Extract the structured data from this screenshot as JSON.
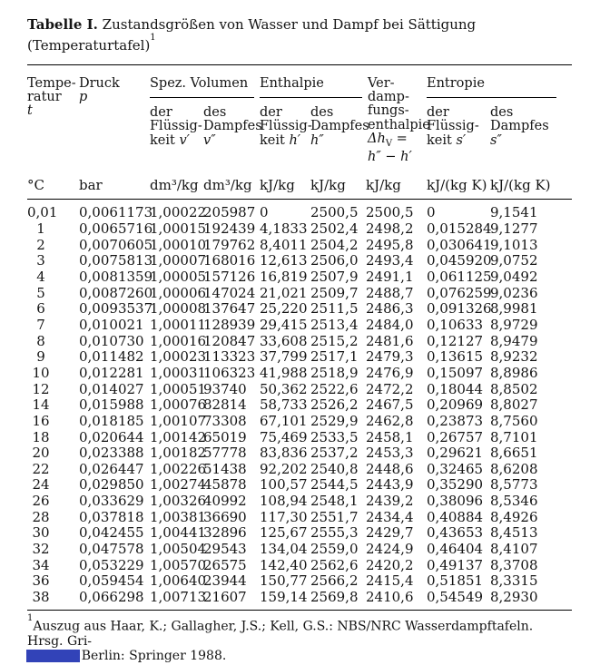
{
  "title": {
    "bold": "Tabelle I.",
    "rest": " Zustandsgrößen von Wasser und Dampf bei Sättigung (Temperaturtafel)",
    "footnote_ref": "1"
  },
  "header": {
    "temperatur": {
      "pre": "Tempe-\nratur\n",
      "sym": "t"
    },
    "druck": {
      "pre": "Druck\n",
      "sym": "p"
    },
    "groups": {
      "spez_volumen": "Spez. Volumen",
      "enthalpie": "Enthalpie",
      "entropie": "Entropie"
    },
    "v_fluessigkeit": {
      "pre": "der\nFlüssig-\nkeit ",
      "sym": "v′"
    },
    "v_dampf": {
      "pre": "des\nDampfes\n",
      "sym": "v″"
    },
    "h_fluessigkeit": {
      "pre": "der\nFlüssig-\nkeit ",
      "sym": "h′"
    },
    "h_dampf": {
      "pre": "des\nDampfes\n",
      "sym": "h″"
    },
    "verdampfung": {
      "pre": "Ver-\ndamp-\nfungs-\nenthalpie\n",
      "f1": "Δh",
      "f1sub": "V",
      "f1eq": " =",
      "f2": "h″ − h′"
    },
    "s_fluessigkeit": {
      "pre": "der\nFlüssig-\nkeit ",
      "sym": "s′"
    },
    "s_dampf": {
      "pre": "des\nDampfes\n",
      "sym": "s″"
    }
  },
  "units": [
    "°C",
    "bar",
    "dm³/kg",
    "dm³/kg",
    "kJ/kg",
    "kJ/kg",
    "kJ/kg",
    "kJ/(kg K)",
    "kJ/(kg K)"
  ],
  "table": {
    "columns": [
      "t",
      "p",
      "v1",
      "v2",
      "h1",
      "h2",
      "dhv",
      "s1",
      "s2"
    ],
    "rows": [
      [
        "0,01",
        "0,0061173",
        "1,00022",
        "205987",
        "0",
        "2500,5",
        "2500,5",
        "0",
        "9,1541"
      ],
      [
        "1",
        "0,0065716",
        "1,00015",
        "192439",
        "4,1833",
        "2502,4",
        "2498,2",
        "0,015284",
        "9,1277"
      ],
      [
        "2",
        "0,0070605",
        "1,00010",
        "179762",
        "8,4011",
        "2504,2",
        "2495,8",
        "0,030641",
        "9,1013"
      ],
      [
        "3",
        "0,0075813",
        "1,00007",
        "168016",
        "12,613",
        "2506,0",
        "2493,4",
        "0,045920",
        "9,0752"
      ],
      [
        "4",
        "0,0081359",
        "1,00005",
        "157126",
        "16,819",
        "2507,9",
        "2491,1",
        "0,061125",
        "9,0492"
      ],
      [
        "5",
        "0,0087260",
        "1,00006",
        "147024",
        "21,021",
        "2509,7",
        "2488,7",
        "0,076259",
        "9,0236"
      ],
      [
        "6",
        "0,0093537",
        "1,00008",
        "137647",
        "25,220",
        "2511,5",
        "2486,3",
        "0,091326",
        "8,9981"
      ],
      [
        "7",
        "0,010021",
        "1,00011",
        "128939",
        "29,415",
        "2513,4",
        "2484,0",
        "0,10633",
        "8,9729"
      ],
      [
        "8",
        "0,010730",
        "1,00016",
        "120847",
        "33,608",
        "2515,2",
        "2481,6",
        "0,12127",
        "8,9479"
      ],
      [
        "9",
        "0,011482",
        "1,00023",
        "113323",
        "37,799",
        "2517,1",
        "2479,3",
        "0,13615",
        "8,9232"
      ],
      [
        "10",
        "0,012281",
        "1,00031",
        "106323",
        "41,988",
        "2518,9",
        "2476,9",
        "0,15097",
        "8,8986"
      ],
      [
        "12",
        "0,014027",
        "1,00051",
        "93740",
        "50,362",
        "2522,6",
        "2472,2",
        "0,18044",
        "8,8502"
      ],
      [
        "14",
        "0,015988",
        "1,00076",
        "82814",
        "58,733",
        "2526,2",
        "2467,5",
        "0,20969",
        "8,8027"
      ],
      [
        "16",
        "0,018185",
        "1,00107",
        "73308",
        "67,101",
        "2529,9",
        "2462,8",
        "0,23873",
        "8,7560"
      ],
      [
        "18",
        "0,020644",
        "1,00142",
        "65019",
        "75,469",
        "2533,5",
        "2458,1",
        "0,26757",
        "8,7101"
      ],
      [
        "20",
        "0,023388",
        "1,00182",
        "57778",
        "83,836",
        "2537,2",
        "2453,3",
        "0,29621",
        "8,6651"
      ],
      [
        "22",
        "0,026447",
        "1,00226",
        "51438",
        "92,202",
        "2540,8",
        "2448,6",
        "0,32465",
        "8,6208"
      ],
      [
        "24",
        "0,029850",
        "1,00274",
        "45878",
        "100,57",
        "2544,5",
        "2443,9",
        "0,35290",
        "8,5773"
      ],
      [
        "26",
        "0,033629",
        "1,00326",
        "40992",
        "108,94",
        "2548,1",
        "2439,2",
        "0,38096",
        "8,5346"
      ],
      [
        "28",
        "0,037818",
        "1,00381",
        "36690",
        "117,30",
        "2551,7",
        "2434,4",
        "0,40884",
        "8,4926"
      ],
      [
        "30",
        "0,042455",
        "1,00441",
        "32896",
        "125,67",
        "2555,3",
        "2429,7",
        "0,43653",
        "8,4513"
      ],
      [
        "32",
        "0,047578",
        "1,00504",
        "29543",
        "134,04",
        "2559,0",
        "2424,9",
        "0,46404",
        "8,4107"
      ],
      [
        "34",
        "0,053229",
        "1,00570",
        "26575",
        "142,40",
        "2562,6",
        "2420,2",
        "0,49137",
        "8,3708"
      ],
      [
        "36",
        "0,059454",
        "1,00640",
        "23944",
        "150,77",
        "2566,2",
        "2415,4",
        "0,51851",
        "8,3315"
      ],
      [
        "38",
        "0,066298",
        "1,00713",
        "21607",
        "159,14",
        "2569,8",
        "2410,6",
        "0,54549",
        "8,2930"
      ]
    ]
  },
  "footnote": {
    "ref": "1",
    "text": "Auszug aus Haar, K.; Gallagher, J.S.; Kell, G.S.: NBS/NRC Wasserdampftafeln. Hrsg. Gri-\ngull, U., Berlin: Springer 1988."
  },
  "annotation": {
    "color": "#3243b8"
  }
}
